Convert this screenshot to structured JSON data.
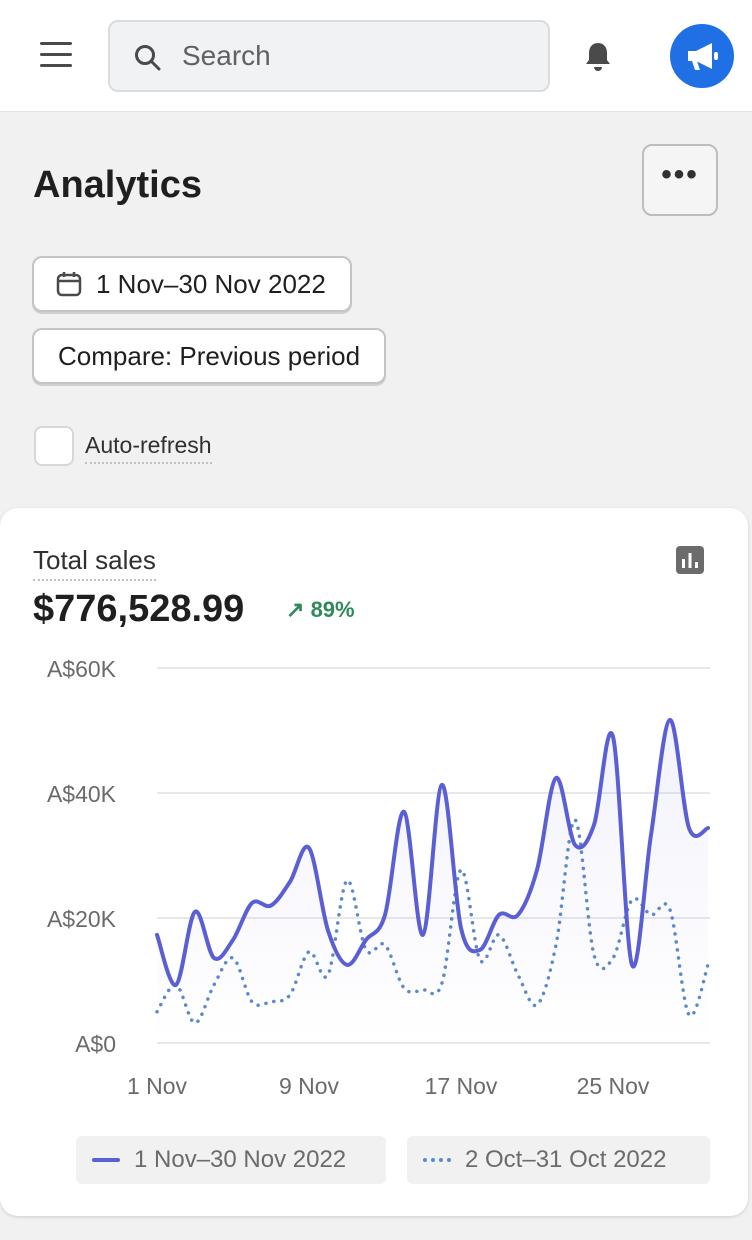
{
  "topbar": {
    "search_placeholder": "Search"
  },
  "page": {
    "title": "Analytics",
    "more_label": "•••"
  },
  "filters": {
    "date_range": "1 Nov–30 Nov 2022",
    "compare": "Compare: Previous period",
    "auto_refresh": "Auto-refresh",
    "auto_refresh_checked": false
  },
  "metric": {
    "label": "Total sales",
    "value": "$776,528.99",
    "delta": "89%",
    "delta_direction": "up",
    "delta_color": "#2e8a5a"
  },
  "chart_data": {
    "type": "line",
    "x": [
      "1 Nov",
      "2 Nov",
      "3 Nov",
      "4 Nov",
      "5 Nov",
      "6 Nov",
      "7 Nov",
      "8 Nov",
      "9 Nov",
      "10 Nov",
      "11 Nov",
      "12 Nov",
      "13 Nov",
      "14 Nov",
      "15 Nov",
      "16 Nov",
      "17 Nov",
      "18 Nov",
      "19 Nov",
      "20 Nov",
      "21 Nov",
      "22 Nov",
      "23 Nov",
      "24 Nov",
      "25 Nov",
      "26 Nov",
      "27 Nov",
      "28 Nov",
      "29 Nov",
      "30 Nov"
    ],
    "xticks": [
      "1 Nov",
      "9 Nov",
      "17 Nov",
      "25 Nov"
    ],
    "yticks": [
      "A$0",
      "A$20K",
      "A$40K",
      "A$60K"
    ],
    "ylim": [
      0,
      60000
    ],
    "grid": true,
    "legend_position": "bottom",
    "series": [
      {
        "name": "1 Nov–30 Nov 2022",
        "style": "solid",
        "color": "#5a5fd4",
        "values": [
          17300,
          9300,
          21000,
          13600,
          16500,
          22400,
          22000,
          25800,
          31200,
          18000,
          12500,
          16500,
          20500,
          37000,
          17300,
          41300,
          18400,
          14900,
          20500,
          20500,
          27700,
          42400,
          31700,
          34900,
          49000,
          12500,
          33300,
          51700,
          34400,
          34400
        ]
      },
      {
        "name": "2 Oct–31 Oct 2022",
        "style": "dotted",
        "color": "#5b8ac9",
        "values": [
          5000,
          9300,
          3200,
          9300,
          13600,
          6600,
          6600,
          7700,
          14600,
          10900,
          26000,
          14900,
          15700,
          8800,
          8500,
          9600,
          27700,
          13300,
          17300,
          10900,
          6100,
          15700,
          35700,
          14100,
          13600,
          22900,
          20500,
          21300,
          4500,
          12500
        ]
      }
    ]
  }
}
